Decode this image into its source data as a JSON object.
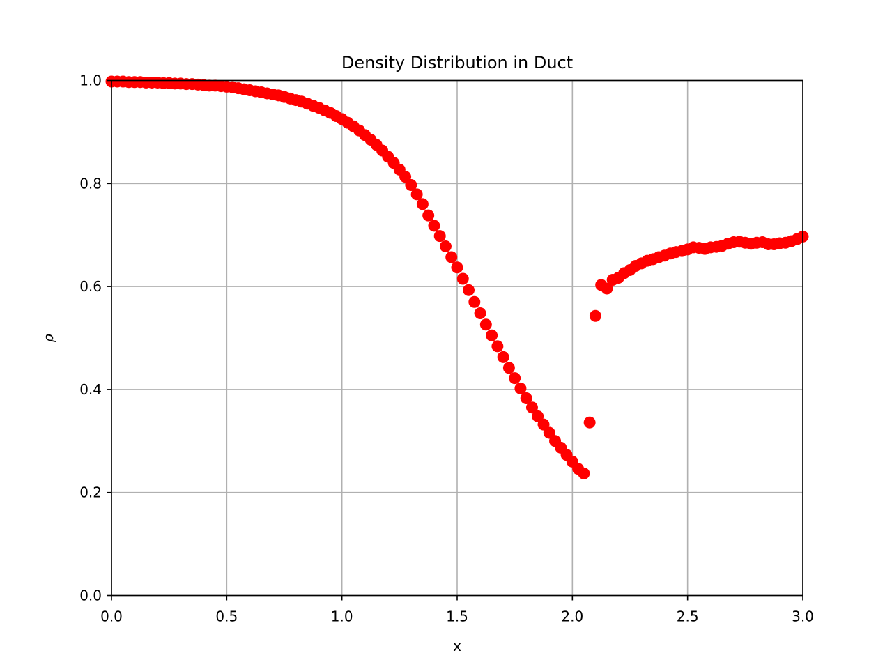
{
  "chart_data": {
    "type": "scatter",
    "title": "Density Distribution in Duct",
    "xlabel": "x",
    "ylabel": "ρ",
    "xlim": [
      0.0,
      3.0
    ],
    "ylim": [
      0.0,
      1.0
    ],
    "grid": true,
    "marker_color": "#ff0000",
    "x_ticks": [
      "0.0",
      "0.5",
      "1.0",
      "1.5",
      "2.0",
      "2.5",
      "3.0"
    ],
    "y_ticks": [
      "0.0",
      "0.2",
      "0.4",
      "0.6",
      "0.8",
      "1.0"
    ],
    "series": [
      {
        "points": [
          [
            0.0,
            0.998
          ],
          [
            0.025,
            0.998
          ],
          [
            0.05,
            0.998
          ],
          [
            0.075,
            0.997
          ],
          [
            0.1,
            0.997
          ],
          [
            0.125,
            0.997
          ],
          [
            0.15,
            0.996
          ],
          [
            0.175,
            0.996
          ],
          [
            0.2,
            0.996
          ],
          [
            0.225,
            0.995
          ],
          [
            0.25,
            0.995
          ],
          [
            0.275,
            0.994
          ],
          [
            0.3,
            0.994
          ],
          [
            0.325,
            0.993
          ],
          [
            0.35,
            0.993
          ],
          [
            0.375,
            0.992
          ],
          [
            0.4,
            0.991
          ],
          [
            0.425,
            0.99
          ],
          [
            0.45,
            0.99
          ],
          [
            0.475,
            0.989
          ],
          [
            0.5,
            0.988
          ],
          [
            0.525,
            0.987
          ],
          [
            0.55,
            0.985
          ],
          [
            0.575,
            0.983
          ],
          [
            0.6,
            0.981
          ],
          [
            0.625,
            0.979
          ],
          [
            0.65,
            0.977
          ],
          [
            0.675,
            0.975
          ],
          [
            0.7,
            0.973
          ],
          [
            0.725,
            0.971
          ],
          [
            0.75,
            0.968
          ],
          [
            0.775,
            0.965
          ],
          [
            0.8,
            0.962
          ],
          [
            0.825,
            0.959
          ],
          [
            0.85,
            0.955
          ],
          [
            0.875,
            0.951
          ],
          [
            0.9,
            0.947
          ],
          [
            0.925,
            0.942
          ],
          [
            0.95,
            0.937
          ],
          [
            0.975,
            0.931
          ],
          [
            1.0,
            0.925
          ],
          [
            1.025,
            0.918
          ],
          [
            1.05,
            0.911
          ],
          [
            1.075,
            0.903
          ],
          [
            1.1,
            0.894
          ],
          [
            1.125,
            0.885
          ],
          [
            1.15,
            0.875
          ],
          [
            1.175,
            0.864
          ],
          [
            1.2,
            0.852
          ],
          [
            1.225,
            0.84
          ],
          [
            1.25,
            0.827
          ],
          [
            1.275,
            0.813
          ],
          [
            1.3,
            0.797
          ],
          [
            1.325,
            0.779
          ],
          [
            1.35,
            0.76
          ],
          [
            1.375,
            0.738
          ],
          [
            1.4,
            0.718
          ],
          [
            1.425,
            0.698
          ],
          [
            1.45,
            0.678
          ],
          [
            1.475,
            0.657
          ],
          [
            1.5,
            0.637
          ],
          [
            1.525,
            0.615
          ],
          [
            1.55,
            0.593
          ],
          [
            1.575,
            0.57
          ],
          [
            1.6,
            0.548
          ],
          [
            1.625,
            0.526
          ],
          [
            1.65,
            0.505
          ],
          [
            1.675,
            0.484
          ],
          [
            1.7,
            0.463
          ],
          [
            1.725,
            0.442
          ],
          [
            1.75,
            0.422
          ],
          [
            1.775,
            0.402
          ],
          [
            1.8,
            0.383
          ],
          [
            1.825,
            0.365
          ],
          [
            1.85,
            0.348
          ],
          [
            1.875,
            0.332
          ],
          [
            1.9,
            0.316
          ],
          [
            1.925,
            0.3
          ],
          [
            1.95,
            0.287
          ],
          [
            1.975,
            0.273
          ],
          [
            2.0,
            0.26
          ],
          [
            2.025,
            0.246
          ],
          [
            2.05,
            0.237
          ],
          [
            2.075,
            0.336
          ],
          [
            2.1,
            0.543
          ],
          [
            2.125,
            0.603
          ],
          [
            2.15,
            0.596
          ],
          [
            2.175,
            0.613
          ],
          [
            2.2,
            0.617
          ],
          [
            2.225,
            0.626
          ],
          [
            2.25,
            0.632
          ],
          [
            2.275,
            0.64
          ],
          [
            2.3,
            0.645
          ],
          [
            2.325,
            0.65
          ],
          [
            2.35,
            0.653
          ],
          [
            2.375,
            0.657
          ],
          [
            2.4,
            0.66
          ],
          [
            2.425,
            0.664
          ],
          [
            2.45,
            0.667
          ],
          [
            2.475,
            0.669
          ],
          [
            2.5,
            0.672
          ],
          [
            2.525,
            0.676
          ],
          [
            2.55,
            0.675
          ],
          [
            2.575,
            0.673
          ],
          [
            2.6,
            0.676
          ],
          [
            2.625,
            0.677
          ],
          [
            2.65,
            0.679
          ],
          [
            2.675,
            0.683
          ],
          [
            2.7,
            0.686
          ],
          [
            2.725,
            0.687
          ],
          [
            2.75,
            0.685
          ],
          [
            2.775,
            0.683
          ],
          [
            2.8,
            0.685
          ],
          [
            2.825,
            0.686
          ],
          [
            2.85,
            0.682
          ],
          [
            2.875,
            0.682
          ],
          [
            2.9,
            0.684
          ],
          [
            2.925,
            0.685
          ],
          [
            2.95,
            0.688
          ],
          [
            2.975,
            0.692
          ],
          [
            3.0,
            0.697
          ]
        ]
      }
    ]
  }
}
